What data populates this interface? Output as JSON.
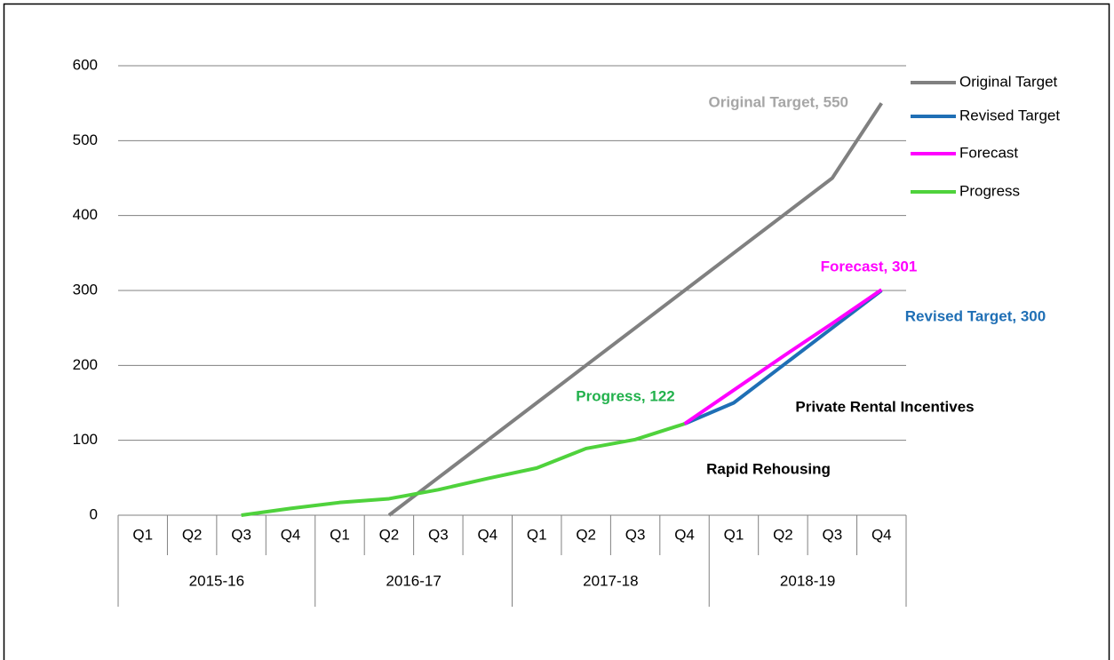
{
  "chart_data": {
    "type": "line",
    "categories": [
      "Q1",
      "Q2",
      "Q3",
      "Q4",
      "Q1",
      "Q2",
      "Q3",
      "Q4",
      "Q1",
      "Q2",
      "Q3",
      "Q4",
      "Q1",
      "Q2",
      "Q3",
      "Q4"
    ],
    "groups": [
      "2015-16",
      "2016-17",
      "2017-18",
      "2018-19"
    ],
    "series": [
      {
        "name": "Original Target",
        "color": "#808080",
        "values": [
          null,
          null,
          null,
          null,
          null,
          0,
          50,
          100,
          150,
          200,
          250,
          300,
          350,
          400,
          450,
          550
        ]
      },
      {
        "name": "Revised Target",
        "color": "#1f6fb5",
        "values": [
          null,
          null,
          null,
          null,
          null,
          null,
          null,
          null,
          null,
          null,
          null,
          122,
          150,
          200,
          250,
          300
        ]
      },
      {
        "name": "Forecast",
        "color": "#ff00ff",
        "values": [
          null,
          null,
          null,
          null,
          null,
          null,
          null,
          null,
          null,
          null,
          null,
          122,
          167,
          212,
          256,
          301
        ]
      },
      {
        "name": "Progress",
        "color": "#4fd23c",
        "values": [
          null,
          null,
          0,
          9,
          17,
          22,
          34,
          49,
          63,
          89,
          101,
          122,
          null,
          null,
          null,
          null
        ]
      }
    ],
    "annotations": [
      {
        "text": "Original Target, 550",
        "color": "#a6a6a6"
      },
      {
        "text": "Forecast, 301",
        "color": "#ff00ff"
      },
      {
        "text": "Revised Target, 300",
        "color": "#1f6fb5"
      },
      {
        "text": "Progress, 122",
        "color": "#22b14c"
      },
      {
        "text": "Private Rental Incentives",
        "color": "#000000"
      },
      {
        "text": "Rapid Rehousing",
        "color": "#000000"
      }
    ],
    "ylim": [
      0,
      600
    ],
    "yticks": [
      0,
      100,
      200,
      300,
      400,
      500,
      600
    ],
    "grid": true,
    "legend": "right"
  }
}
